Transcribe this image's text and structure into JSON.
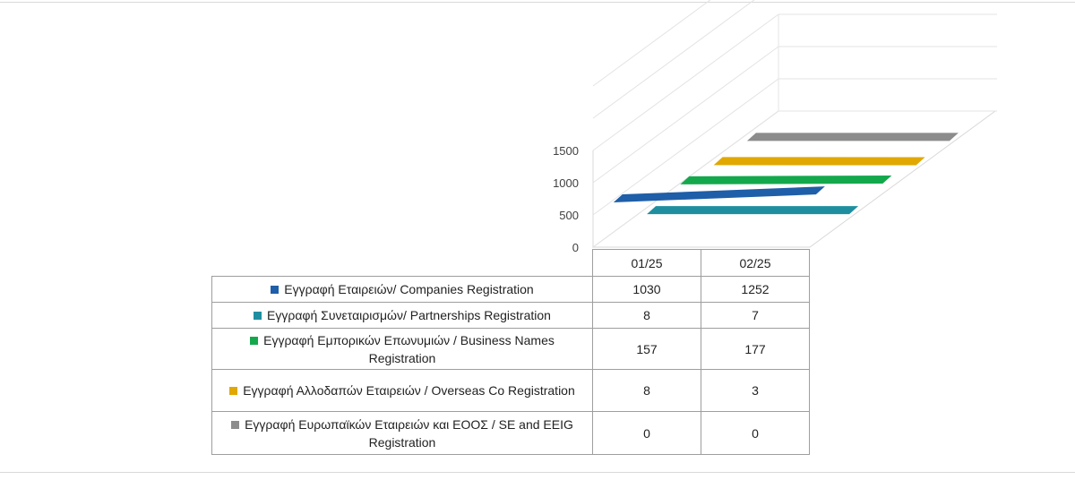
{
  "chart_data": {
    "type": "bar",
    "style": "3d-table",
    "categories": [
      "01/25",
      "02/25"
    ],
    "y_ticks": [
      "0",
      "500",
      "1000",
      "1500"
    ],
    "ylim": [
      0,
      1500
    ],
    "grid": true,
    "series": [
      {
        "name": "Εγγραφή Εταιρειών/ Companies Registration",
        "color": "#1f5ea8",
        "values": [
          1030,
          1252
        ]
      },
      {
        "name": "Εγγραφή Συνεταιρισμών/ Partnerships Registration",
        "color": "#1f8fa0",
        "values": [
          8,
          7
        ]
      },
      {
        "name": "Εγγραφή Εμπορικών Επωνυμιών / Business Names Registration",
        "color": "#14a84c",
        "values": [
          157,
          177
        ]
      },
      {
        "name": "Εγγραφή Αλλοδαπών Εταιρειών / Overseas Co Registration",
        "color": "#e0a800",
        "values": [
          8,
          3
        ]
      },
      {
        "name": "Εγγραφή Ευρωπαϊκών Εταιρειών και ΕΟΟΣ / SE and EEIG Registration",
        "color": "#8c8c8c",
        "values": [
          0,
          0
        ]
      }
    ]
  },
  "table": {
    "header": [
      "01/25",
      "02/25"
    ],
    "rows": [
      {
        "label": "Εγγραφή Εταιρειών/ Companies Registration",
        "v1": "1030",
        "v2": "1252"
      },
      {
        "label": "Εγγραφή Συνεταιρισμών/ Partnerships Registration",
        "v1": "8",
        "v2": "7"
      },
      {
        "label": "Εγγραφή Εμπορικών Επωνυμιών / Business Names Registration",
        "v1": "157",
        "v2": "177"
      },
      {
        "label": "Εγγραφή Αλλοδαπών Εταιρειών / Overseas Co Registration",
        "v1": "8",
        "v2": "3"
      },
      {
        "label": "Εγγραφή Ευρωπαϊκών Εταιρειών και ΕΟΟΣ / SE and EEIG Registration",
        "v1": "0",
        "v2": "0"
      }
    ]
  }
}
